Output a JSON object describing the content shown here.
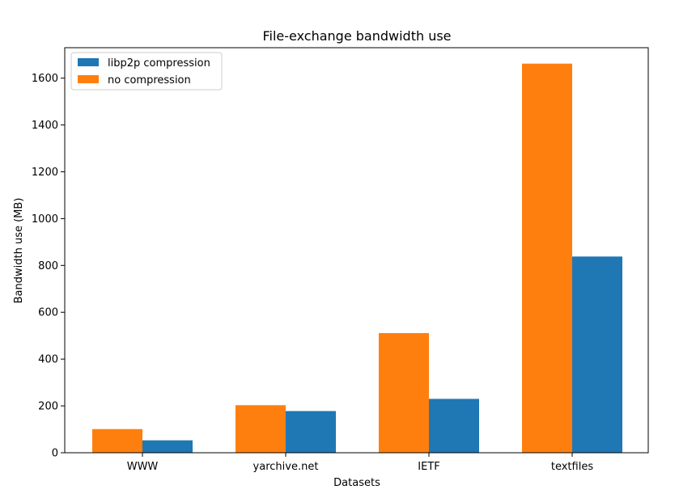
{
  "chart_data": {
    "type": "bar",
    "title": "File-exchange bandwidth use",
    "xlabel": "Datasets",
    "ylabel": "Bandwidth use (MB)",
    "categories": [
      "WWW",
      "yarchive.net",
      "IETF",
      "textfiles"
    ],
    "ylim": [
      0,
      1730
    ],
    "yticks": [
      0,
      200,
      400,
      600,
      800,
      1000,
      1200,
      1400,
      1600
    ],
    "series": [
      {
        "name": "no compression",
        "color": "#ff7f0e",
        "values": [
          101,
          203,
          511,
          1662
        ]
      },
      {
        "name": "libp2p compression",
        "color": "#1f77b4",
        "values": [
          53,
          178,
          230,
          838
        ]
      }
    ],
    "legend": {
      "position": "top-left",
      "entries": [
        {
          "label": "libp2p compression",
          "color": "#1f77b4"
        },
        {
          "label": "no compression",
          "color": "#ff7f0e"
        }
      ]
    },
    "grid": false
  }
}
